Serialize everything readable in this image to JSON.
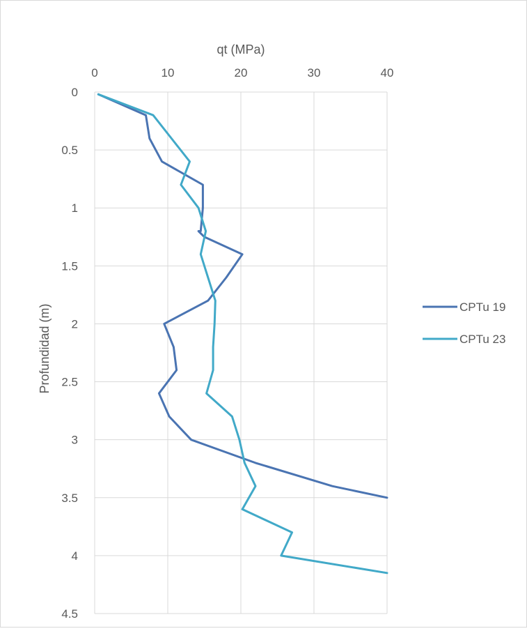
{
  "chart_data": {
    "type": "line",
    "title": "",
    "xlabel": "qt (MPa)",
    "ylabel": "Profundidad (m)",
    "x_axis_position": "top",
    "y_axis_inverted": true,
    "xlim": [
      0,
      40
    ],
    "ylim": [
      0,
      4.5
    ],
    "x_ticks": [
      "0",
      "10",
      "20",
      "30",
      "40"
    ],
    "y_ticks": [
      "0",
      "0.5",
      "1",
      "1.5",
      "2",
      "2.5",
      "3",
      "3.5",
      "4",
      "4.5"
    ],
    "grid": true,
    "legend_position": "right",
    "series": [
      {
        "name": "CPTu 19",
        "color": "#4a74b2",
        "points": [
          {
            "x": 0.5,
            "y": 0.02
          },
          {
            "x": 7.0,
            "y": 0.2
          },
          {
            "x": 7.5,
            "y": 0.4
          },
          {
            "x": 9.2,
            "y": 0.6
          },
          {
            "x": 14.8,
            "y": 0.8
          },
          {
            "x": 14.8,
            "y": 1.0
          },
          {
            "x": 14.5,
            "y": 1.2
          },
          {
            "x": 14.2,
            "y": 1.2
          },
          {
            "x": 15.0,
            "y": 1.25
          },
          {
            "x": 20.2,
            "y": 1.4
          },
          {
            "x": 18.0,
            "y": 1.6
          },
          {
            "x": 15.5,
            "y": 1.8
          },
          {
            "x": 9.5,
            "y": 2.0
          },
          {
            "x": 10.8,
            "y": 2.2
          },
          {
            "x": 11.2,
            "y": 2.4
          },
          {
            "x": 8.8,
            "y": 2.6
          },
          {
            "x": 10.2,
            "y": 2.8
          },
          {
            "x": 13.2,
            "y": 3.0
          },
          {
            "x": 22.0,
            "y": 3.2
          },
          {
            "x": 32.5,
            "y": 3.4
          },
          {
            "x": 40.0,
            "y": 3.5
          }
        ]
      },
      {
        "name": "CPTu 23",
        "color": "#41a9c8",
        "points": [
          {
            "x": 0.5,
            "y": 0.02
          },
          {
            "x": 8.0,
            "y": 0.2
          },
          {
            "x": 10.5,
            "y": 0.4
          },
          {
            "x": 13.0,
            "y": 0.6
          },
          {
            "x": 11.8,
            "y": 0.8
          },
          {
            "x": 14.2,
            "y": 1.0
          },
          {
            "x": 15.2,
            "y": 1.2
          },
          {
            "x": 14.5,
            "y": 1.4
          },
          {
            "x": 15.5,
            "y": 1.6
          },
          {
            "x": 16.5,
            "y": 1.8
          },
          {
            "x": 16.4,
            "y": 2.0
          },
          {
            "x": 16.2,
            "y": 2.2
          },
          {
            "x": 16.2,
            "y": 2.4
          },
          {
            "x": 15.3,
            "y": 2.6
          },
          {
            "x": 18.8,
            "y": 2.8
          },
          {
            "x": 19.8,
            "y": 3.0
          },
          {
            "x": 20.5,
            "y": 3.2
          },
          {
            "x": 22.0,
            "y": 3.4
          },
          {
            "x": 20.2,
            "y": 3.6
          },
          {
            "x": 27.0,
            "y": 3.8
          },
          {
            "x": 25.5,
            "y": 4.0
          },
          {
            "x": 40.0,
            "y": 4.15
          }
        ]
      }
    ]
  }
}
